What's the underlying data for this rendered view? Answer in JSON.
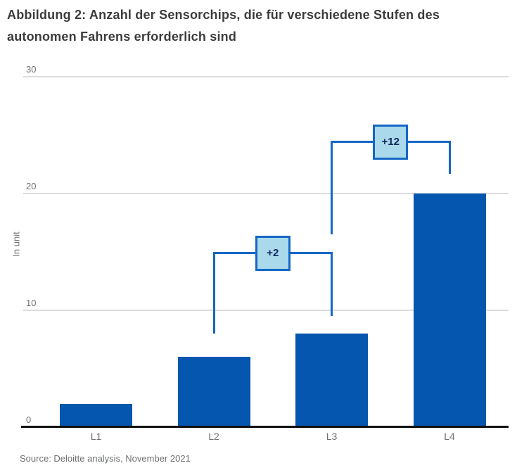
{
  "title": {
    "line1": "Abbildung 2: Anzahl der Sensorchips, die für verschiedene Stufen des",
    "line2": "autonomen Fahrens erforderlich sind"
  },
  "source": "Source: Deloitte analysis, November 2021",
  "chart_data": {
    "type": "bar",
    "title": "Abbildung 2: Anzahl der Sensorchips, die für verschiedene Stufen des autonomen Fahrens erforderlich sind",
    "categories": [
      "L1",
      "L2",
      "L3",
      "L4"
    ],
    "values": [
      2,
      6,
      8,
      20
    ],
    "ylabel": "In unit",
    "yticks": [
      0,
      10,
      20,
      30
    ],
    "ytick_labels": [
      "0",
      "10",
      "20",
      "30"
    ],
    "ylim": [
      0,
      30
    ],
    "grid": true,
    "legend": false,
    "annotations": [
      {
        "label": "+2",
        "from": "L2",
        "to": "L3",
        "bracket_y": 14.9,
        "left_arm_end_y": 8.0,
        "right_arm_end_y": 9.5
      },
      {
        "label": "+12",
        "from": "L3",
        "to": "L4",
        "bracket_y": 24.4,
        "left_arm_end_y": 16.5,
        "right_arm_end_y": 21.7
      }
    ],
    "colors": {
      "bar": "#0556ae",
      "bracket_line": "#1567c4",
      "annotation_box_fill": "#a9d9ea",
      "annotation_box_border": "#1567c4",
      "annotation_text": "#13265c",
      "axis_text": "#6e7072",
      "gridline": "#dcdcdc",
      "baseline": "#111111",
      "title_text": "#3c3c3e"
    }
  }
}
